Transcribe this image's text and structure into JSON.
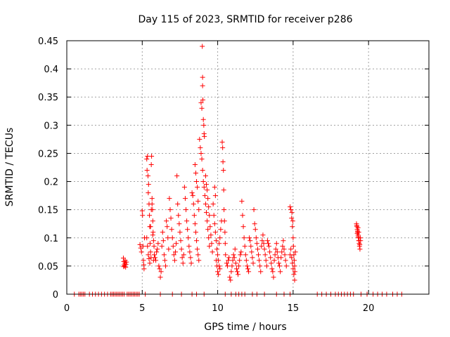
{
  "chart_data": {
    "type": "scatter",
    "title": "Day 115 of 2023, SRMTID for receiver p286",
    "xlabel": "GPS time / hours",
    "ylabel": "SRMTID / TECUs",
    "xlim": [
      0,
      24
    ],
    "ylim": [
      0,
      0.45
    ],
    "xticks": [
      0,
      5,
      10,
      15,
      20
    ],
    "yticks": [
      0,
      0.05,
      0.1,
      0.15,
      0.2,
      0.25,
      0.3,
      0.35,
      0.4,
      0.45
    ],
    "xtick_labels": [
      "0",
      "5",
      "10",
      "15",
      "20"
    ],
    "ytick_labels": [
      "0",
      "0.05",
      "0.1",
      "0.15",
      "0.2",
      "0.25",
      "0.3",
      "0.35",
      "0.4",
      "0.45"
    ],
    "grid": true,
    "marker": "+",
    "color": "#ff0000",
    "points": [
      [
        3.75,
        0.064
      ],
      [
        3.78,
        0.058
      ],
      [
        3.8,
        0.052
      ],
      [
        3.82,
        0.05
      ],
      [
        3.85,
        0.055
      ],
      [
        3.87,
        0.06
      ],
      [
        3.9,
        0.048
      ],
      [
        3.92,
        0.053
      ],
      [
        3.95,
        0.057
      ],
      [
        3.77,
        0.049
      ],
      [
        4.85,
        0.088
      ],
      [
        4.9,
        0.082
      ],
      [
        4.95,
        0.075
      ],
      [
        5.0,
        0.148
      ],
      [
        5.02,
        0.14
      ],
      [
        5.05,
        0.085
      ],
      [
        5.08,
        0.06
      ],
      [
        5.1,
        0.052
      ],
      [
        5.12,
        0.045
      ],
      [
        5.15,
        0.1
      ],
      [
        5.3,
        0.24
      ],
      [
        5.32,
        0.22
      ],
      [
        5.35,
        0.245
      ],
      [
        5.38,
        0.21
      ],
      [
        5.4,
        0.18
      ],
      [
        5.42,
        0.195
      ],
      [
        5.45,
        0.16
      ],
      [
        5.48,
        0.14
      ],
      [
        5.5,
        0.12
      ],
      [
        5.52,
        0.09
      ],
      [
        5.55,
        0.075
      ],
      [
        5.58,
        0.065
      ],
      [
        5.6,
        0.23
      ],
      [
        5.62,
        0.245
      ],
      [
        5.65,
        0.17
      ],
      [
        5.68,
        0.15
      ],
      [
        5.7,
        0.13
      ],
      [
        5.72,
        0.11
      ],
      [
        5.75,
        0.095
      ],
      [
        5.78,
        0.085
      ],
      [
        5.3,
        0.1
      ],
      [
        5.35,
        0.085
      ],
      [
        5.4,
        0.07
      ],
      [
        5.45,
        0.063
      ],
      [
        5.5,
        0.055
      ],
      [
        5.55,
        0.12
      ],
      [
        5.6,
        0.15
      ],
      [
        5.65,
        0.16
      ],
      [
        5.7,
        0.105
      ],
      [
        5.75,
        0.06
      ],
      [
        5.8,
        0.07
      ],
      [
        5.85,
        0.065
      ],
      [
        5.9,
        0.06
      ],
      [
        5.95,
        0.075
      ],
      [
        6.0,
        0.08
      ],
      [
        6.05,
        0.09
      ],
      [
        6.1,
        0.05
      ],
      [
        6.15,
        0.045
      ],
      [
        6.2,
        0.03
      ],
      [
        6.25,
        0.04
      ],
      [
        6.3,
        0.085
      ],
      [
        6.35,
        0.11
      ],
      [
        6.4,
        0.095
      ],
      [
        6.45,
        0.07
      ],
      [
        6.5,
        0.06
      ],
      [
        6.55,
        0.05
      ],
      [
        6.6,
        0.13
      ],
      [
        6.65,
        0.12
      ],
      [
        6.7,
        0.1
      ],
      [
        6.75,
        0.08
      ],
      [
        6.8,
        0.17
      ],
      [
        6.85,
        0.15
      ],
      [
        6.9,
        0.135
      ],
      [
        6.95,
        0.115
      ],
      [
        7.0,
        0.1
      ],
      [
        7.05,
        0.085
      ],
      [
        7.1,
        0.07
      ],
      [
        7.15,
        0.06
      ],
      [
        7.2,
        0.075
      ],
      [
        7.25,
        0.09
      ],
      [
        7.3,
        0.21
      ],
      [
        7.35,
        0.16
      ],
      [
        7.4,
        0.14
      ],
      [
        7.45,
        0.125
      ],
      [
        7.5,
        0.11
      ],
      [
        7.55,
        0.095
      ],
      [
        7.6,
        0.08
      ],
      [
        7.65,
        0.065
      ],
      [
        7.7,
        0.055
      ],
      [
        7.75,
        0.07
      ],
      [
        7.8,
        0.19
      ],
      [
        7.85,
        0.17
      ],
      [
        7.9,
        0.15
      ],
      [
        7.95,
        0.13
      ],
      [
        8.0,
        0.115
      ],
      [
        8.05,
        0.1
      ],
      [
        8.1,
        0.085
      ],
      [
        8.15,
        0.075
      ],
      [
        8.2,
        0.065
      ],
      [
        8.25,
        0.055
      ],
      [
        8.3,
        0.18
      ],
      [
        8.35,
        0.175
      ],
      [
        8.4,
        0.16
      ],
      [
        8.45,
        0.14
      ],
      [
        8.5,
        0.125
      ],
      [
        8.55,
        0.11
      ],
      [
        8.6,
        0.095
      ],
      [
        8.65,
        0.08
      ],
      [
        8.7,
        0.07
      ],
      [
        8.75,
        0.06
      ],
      [
        8.5,
        0.23
      ],
      [
        8.55,
        0.215
      ],
      [
        8.6,
        0.2
      ],
      [
        8.65,
        0.19
      ],
      [
        8.7,
        0.165
      ],
      [
        8.75,
        0.15
      ],
      [
        8.8,
        0.275
      ],
      [
        8.85,
        0.26
      ],
      [
        8.9,
        0.25
      ],
      [
        8.95,
        0.24
      ],
      [
        8.9,
        0.34
      ],
      [
        8.95,
        0.33
      ],
      [
        9.0,
        0.385
      ],
      [
        9.0,
        0.37
      ],
      [
        8.98,
        0.44
      ],
      [
        9.02,
        0.345
      ],
      [
        9.05,
        0.31
      ],
      [
        9.08,
        0.3
      ],
      [
        9.1,
        0.285
      ],
      [
        9.12,
        0.28
      ],
      [
        9.0,
        0.22
      ],
      [
        9.05,
        0.2
      ],
      [
        9.1,
        0.19
      ],
      [
        9.15,
        0.175
      ],
      [
        9.2,
        0.16
      ],
      [
        9.25,
        0.145
      ],
      [
        9.3,
        0.13
      ],
      [
        9.35,
        0.115
      ],
      [
        9.4,
        0.1
      ],
      [
        9.45,
        0.085
      ],
      [
        9.2,
        0.21
      ],
      [
        9.25,
        0.195
      ],
      [
        9.3,
        0.185
      ],
      [
        9.35,
        0.17
      ],
      [
        9.4,
        0.155
      ],
      [
        9.45,
        0.14
      ],
      [
        9.5,
        0.12
      ],
      [
        9.55,
        0.105
      ],
      [
        9.6,
        0.09
      ],
      [
        9.65,
        0.075
      ],
      [
        9.7,
        0.16
      ],
      [
        9.75,
        0.14
      ],
      [
        9.8,
        0.125
      ],
      [
        9.85,
        0.11
      ],
      [
        9.9,
        0.095
      ],
      [
        9.95,
        0.08
      ],
      [
        10.0,
        0.07
      ],
      [
        10.05,
        0.06
      ],
      [
        10.1,
        0.05
      ],
      [
        10.15,
        0.045
      ],
      [
        9.8,
        0.19
      ],
      [
        9.85,
        0.175
      ],
      [
        9.9,
        0.06
      ],
      [
        9.95,
        0.05
      ],
      [
        10.0,
        0.04
      ],
      [
        10.05,
        0.035
      ],
      [
        10.1,
        0.09
      ],
      [
        10.15,
        0.1
      ],
      [
        10.2,
        0.115
      ],
      [
        10.25,
        0.13
      ],
      [
        10.3,
        0.27
      ],
      [
        10.33,
        0.26
      ],
      [
        10.35,
        0.235
      ],
      [
        10.38,
        0.22
      ],
      [
        10.4,
        0.185
      ],
      [
        10.42,
        0.15
      ],
      [
        10.45,
        0.13
      ],
      [
        10.48,
        0.11
      ],
      [
        10.5,
        0.09
      ],
      [
        10.52,
        0.07
      ],
      [
        10.6,
        0.055
      ],
      [
        10.65,
        0.05
      ],
      [
        10.7,
        0.06
      ],
      [
        10.75,
        0.065
      ],
      [
        10.8,
        0.03
      ],
      [
        10.85,
        0.025
      ],
      [
        10.9,
        0.04
      ],
      [
        10.95,
        0.05
      ],
      [
        11.0,
        0.06
      ],
      [
        11.05,
        0.07
      ],
      [
        11.1,
        0.065
      ],
      [
        11.15,
        0.08
      ],
      [
        11.2,
        0.055
      ],
      [
        11.25,
        0.045
      ],
      [
        11.3,
        0.04
      ],
      [
        11.35,
        0.035
      ],
      [
        11.4,
        0.05
      ],
      [
        11.45,
        0.06
      ],
      [
        11.5,
        0.07
      ],
      [
        11.55,
        0.075
      ],
      [
        11.6,
        0.165
      ],
      [
        11.65,
        0.14
      ],
      [
        11.7,
        0.12
      ],
      [
        11.75,
        0.1
      ],
      [
        11.8,
        0.085
      ],
      [
        11.85,
        0.07
      ],
      [
        11.9,
        0.06
      ],
      [
        11.95,
        0.05
      ],
      [
        12.0,
        0.045
      ],
      [
        12.05,
        0.04
      ],
      [
        12.1,
        0.1
      ],
      [
        12.15,
        0.095
      ],
      [
        12.2,
        0.085
      ],
      [
        12.25,
        0.075
      ],
      [
        12.3,
        0.065
      ],
      [
        12.35,
        0.055
      ],
      [
        12.4,
        0.15
      ],
      [
        12.45,
        0.125
      ],
      [
        12.5,
        0.115
      ],
      [
        12.55,
        0.1
      ],
      [
        12.6,
        0.09
      ],
      [
        12.65,
        0.08
      ],
      [
        12.7,
        0.07
      ],
      [
        12.75,
        0.06
      ],
      [
        12.8,
        0.05
      ],
      [
        12.85,
        0.04
      ],
      [
        12.9,
        0.085
      ],
      [
        12.95,
        0.095
      ],
      [
        13.0,
        0.105
      ],
      [
        13.05,
        0.09
      ],
      [
        13.1,
        0.08
      ],
      [
        13.15,
        0.07
      ],
      [
        13.2,
        0.06
      ],
      [
        13.25,
        0.05
      ],
      [
        13.3,
        0.095
      ],
      [
        13.35,
        0.09
      ],
      [
        13.4,
        0.085
      ],
      [
        13.45,
        0.075
      ],
      [
        13.5,
        0.065
      ],
      [
        13.55,
        0.055
      ],
      [
        13.6,
        0.045
      ],
      [
        13.65,
        0.04
      ],
      [
        13.7,
        0.03
      ],
      [
        13.75,
        0.06
      ],
      [
        13.8,
        0.07
      ],
      [
        13.85,
        0.08
      ],
      [
        13.9,
        0.09
      ],
      [
        13.95,
        0.075
      ],
      [
        14.0,
        0.065
      ],
      [
        14.05,
        0.055
      ],
      [
        14.1,
        0.05
      ],
      [
        14.15,
        0.04
      ],
      [
        14.2,
        0.065
      ],
      [
        14.25,
        0.075
      ],
      [
        14.3,
        0.085
      ],
      [
        14.35,
        0.095
      ],
      [
        14.4,
        0.08
      ],
      [
        14.45,
        0.07
      ],
      [
        14.5,
        0.06
      ],
      [
        14.55,
        0.05
      ],
      [
        14.8,
        0.155
      ],
      [
        14.85,
        0.15
      ],
      [
        14.9,
        0.135
      ],
      [
        14.95,
        0.12
      ],
      [
        15.0,
        0.1
      ],
      [
        15.02,
        0.085
      ],
      [
        15.05,
        0.07
      ],
      [
        15.08,
        0.06
      ],
      [
        15.1,
        0.05
      ],
      [
        15.12,
        0.04
      ],
      [
        14.9,
        0.065
      ],
      [
        14.95,
        0.055
      ],
      [
        15.0,
        0.045
      ],
      [
        15.05,
        0.035
      ],
      [
        15.1,
        0.025
      ],
      [
        14.85,
        0.08
      ],
      [
        14.8,
        0.07
      ],
      [
        15.15,
        0.075
      ],
      [
        14.92,
        0.145
      ],
      [
        14.98,
        0.13
      ],
      [
        19.2,
        0.125
      ],
      [
        19.23,
        0.12
      ],
      [
        19.25,
        0.115
      ],
      [
        19.28,
        0.11
      ],
      [
        19.3,
        0.105
      ],
      [
        19.33,
        0.1
      ],
      [
        19.35,
        0.095
      ],
      [
        19.38,
        0.09
      ],
      [
        19.4,
        0.085
      ],
      [
        19.43,
        0.08
      ],
      [
        19.22,
        0.122
      ],
      [
        19.27,
        0.112
      ],
      [
        19.32,
        0.102
      ],
      [
        19.37,
        0.095
      ],
      [
        19.42,
        0.088
      ],
      [
        19.45,
        0.1
      ],
      [
        19.47,
        0.095
      ],
      [
        19.25,
        0.108
      ],
      [
        19.3,
        0.118
      ],
      [
        19.35,
        0.11
      ]
    ],
    "baseline_points_x": [
      0.5,
      0.8,
      0.9,
      1.0,
      1.1,
      1.2,
      1.5,
      1.7,
      1.9,
      2.1,
      2.3,
      2.5,
      2.7,
      2.9,
      3.0,
      3.1,
      3.2,
      3.3,
      3.4,
      3.5,
      3.6,
      3.7,
      3.8,
      4.0,
      4.1,
      4.2,
      4.3,
      4.4,
      4.5,
      4.6,
      4.7,
      4.8,
      5.2,
      6.2,
      7.0,
      7.6,
      8.3,
      8.6,
      9.1,
      10.5,
      10.9,
      11.2,
      11.4,
      11.6,
      11.8,
      12.3,
      12.6,
      13.1,
      13.9,
      14.4,
      14.8,
      16.6,
      16.9,
      17.2,
      17.5,
      17.8,
      18.0,
      18.2,
      18.4,
      18.6,
      18.8,
      19.0,
      19.5,
      19.9,
      20.3,
      20.6,
      20.9,
      21.2,
      21.6,
      21.9,
      22.2
    ]
  }
}
